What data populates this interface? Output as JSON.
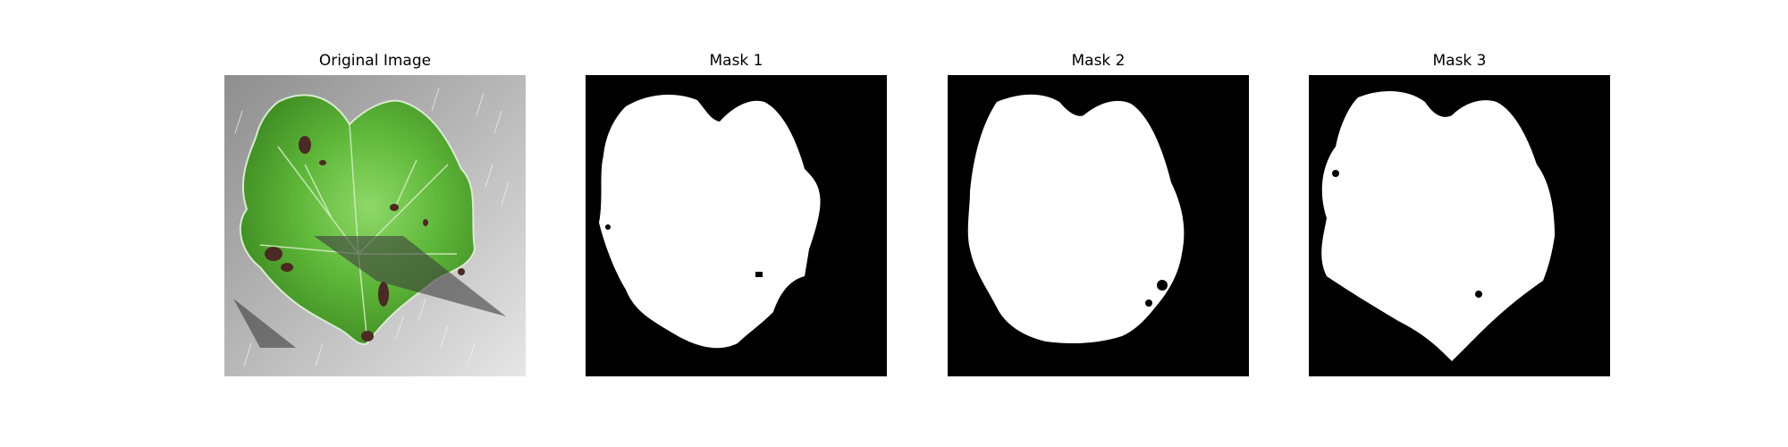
{
  "figure": {
    "panels": [
      {
        "title": "Original Image",
        "content": "green leaf with brown spots on grey background"
      },
      {
        "title": "Mask 1",
        "content": "binary segmentation mask"
      },
      {
        "title": "Mask 2",
        "content": "binary segmentation mask"
      },
      {
        "title": "Mask 3",
        "content": "binary segmentation mask"
      }
    ]
  },
  "colors": {
    "mask_background": "#000000",
    "mask_foreground": "#ffffff",
    "leaf_green": "#5fb83a",
    "leaf_dark_spot": "#4a2a22",
    "photo_background": "#a9a9a9"
  }
}
